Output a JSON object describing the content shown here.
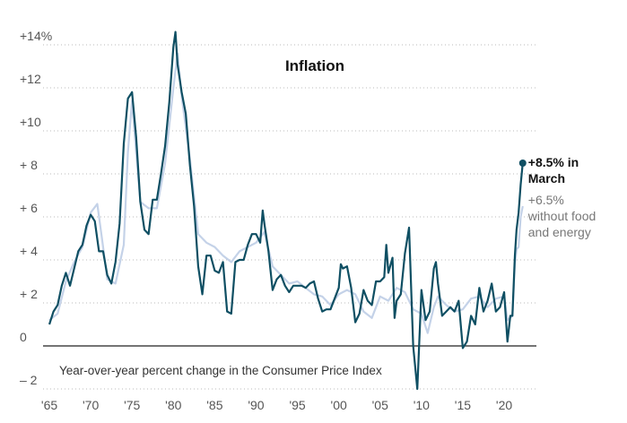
{
  "chart_data": {
    "type": "line",
    "title": "Inflation",
    "subtitle": "Year-over-year percent change in the Consumer Price Index",
    "xlim": [
      1964,
      2024
    ],
    "xticks": [
      {
        "value": 1965,
        "label": "'65"
      },
      {
        "value": 1970,
        "label": "'70"
      },
      {
        "value": 1975,
        "label": "'75"
      },
      {
        "value": 1980,
        "label": "'80"
      },
      {
        "value": 1985,
        "label": "'85"
      },
      {
        "value": 1990,
        "label": "'90"
      },
      {
        "value": 1995,
        "label": "'95"
      },
      {
        "value": 2000,
        "label": "'00"
      },
      {
        "value": 2005,
        "label": "'05"
      },
      {
        "value": 2010,
        "label": "'10"
      },
      {
        "value": 2015,
        "label": "'15"
      },
      {
        "value": 2020,
        "label": "'20"
      }
    ],
    "ylim": [
      -2.3,
      14.7
    ],
    "yticks": [
      {
        "value": 14,
        "label": "+14%"
      },
      {
        "value": 12,
        "label": "+12"
      },
      {
        "value": 10,
        "label": "+10"
      },
      {
        "value": 8,
        "label": "+ 8"
      },
      {
        "value": 6,
        "label": "+ 6"
      },
      {
        "value": 4,
        "label": "+ 4"
      },
      {
        "value": 2,
        "label": "+ 2"
      },
      0,
      {
        "value": -2,
        "label": "– 2"
      }
    ],
    "grid": true,
    "series": [
      {
        "color": "#c4d2e8",
        "label_lines": [
          "+6.5%",
          "without food",
          "and energy"
        ],
        "x": [
          1965,
          1966,
          1967,
          1968,
          1969,
          1970,
          1970.8,
          1971.5,
          1972,
          1973,
          1974,
          1974.5,
          1975,
          1975.5,
          1976,
          1977,
          1978,
          1979,
          1980,
          1980.5,
          1981,
          1982,
          1983,
          1984,
          1985,
          1986,
          1987,
          1988,
          1989,
          1990,
          1991,
          1992,
          1993,
          1994,
          1995,
          1996,
          1997,
          1998,
          1999,
          2000,
          2001,
          2002,
          2003,
          2004,
          2005,
          2006,
          2007,
          2008,
          2009,
          2010,
          2010.75,
          2011.5,
          2012,
          2013,
          2014,
          2015,
          2016,
          2017,
          2018,
          2019,
          2020,
          2020.4,
          2021,
          2021.3,
          2021.5,
          2021.75,
          2022,
          2022.25
        ],
        "values": [
          1.2,
          1.5,
          3.0,
          3.9,
          4.6,
          6.2,
          6.6,
          4.6,
          3.1,
          2.9,
          4.7,
          9.0,
          11.4,
          9.0,
          6.7,
          6.4,
          6.4,
          8.5,
          12.0,
          13.6,
          11.6,
          8.7,
          5.2,
          4.8,
          4.6,
          4.2,
          3.9,
          4.4,
          4.6,
          4.8,
          5.3,
          3.7,
          3.3,
          2.9,
          3.0,
          2.7,
          2.4,
          2.3,
          1.9,
          2.4,
          2.6,
          2.4,
          1.6,
          1.3,
          2.3,
          2.1,
          2.7,
          2.5,
          1.7,
          1.5,
          0.6,
          1.8,
          2.3,
          1.9,
          1.6,
          1.7,
          2.2,
          2.3,
          1.8,
          2.2,
          2.3,
          1.2,
          1.4,
          3.8,
          4.5,
          4.6,
          6.0,
          6.5
        ]
      },
      {
        "color": "#0f4f63",
        "label_lines": [
          "+8.5% in",
          "March"
        ],
        "x": [
          1965,
          1965.5,
          1966,
          1966.5,
          1967,
          1967.5,
          1968,
          1968.5,
          1969,
          1969.5,
          1970,
          1970.5,
          1971,
          1971.5,
          1972,
          1972.5,
          1973,
          1973.5,
          1974,
          1974.5,
          1975,
          1975.5,
          1976,
          1976.5,
          1977,
          1977.5,
          1978,
          1978.5,
          1979,
          1979.5,
          1980,
          1980.25,
          1980.5,
          1981,
          1981.5,
          1982,
          1982.5,
          1983,
          1983.5,
          1984,
          1984.5,
          1985,
          1985.5,
          1986,
          1986.5,
          1987,
          1987.5,
          1988,
          1988.5,
          1989,
          1989.5,
          1990,
          1990.5,
          1990.8,
          1991,
          1991.5,
          1992,
          1992.5,
          1993,
          1993.5,
          1994,
          1994.5,
          1995,
          1995.5,
          1996,
          1996.5,
          1997,
          1997.5,
          1998,
          1998.5,
          1999,
          1999.5,
          2000,
          2000.25,
          2000.5,
          2001,
          2001.5,
          2002,
          2002.5,
          2003,
          2003.5,
          2004,
          2004.5,
          2005,
          2005.5,
          2005.75,
          2006,
          2006.5,
          2006.75,
          2007,
          2007.5,
          2008,
          2008.5,
          2008.9,
          2009,
          2009.5,
          2010,
          2010.5,
          2011,
          2011.5,
          2011.75,
          2012,
          2012.5,
          2013,
          2013.5,
          2014,
          2014.5,
          2015,
          2015.5,
          2016,
          2016.5,
          2017,
          2017.5,
          2018,
          2018.5,
          2019,
          2019.5,
          2020,
          2020.4,
          2020.75,
          2021,
          2021.3,
          2021.5,
          2021.75,
          2022,
          2022.25
        ],
        "values": [
          1.0,
          1.6,
          1.9,
          2.8,
          3.4,
          2.8,
          3.6,
          4.4,
          4.7,
          5.6,
          6.1,
          5.8,
          4.4,
          4.4,
          3.3,
          2.9,
          3.9,
          5.7,
          9.4,
          11.5,
          11.8,
          9.7,
          6.7,
          5.4,
          5.2,
          6.8,
          6.8,
          8.0,
          9.3,
          11.3,
          13.9,
          14.6,
          13.1,
          11.8,
          10.8,
          8.4,
          6.5,
          3.7,
          2.4,
          4.2,
          4.2,
          3.5,
          3.4,
          3.9,
          1.6,
          1.5,
          3.9,
          4.0,
          4.0,
          4.7,
          5.2,
          5.2,
          4.8,
          6.3,
          5.7,
          4.4,
          2.6,
          3.1,
          3.3,
          2.8,
          2.5,
          2.8,
          2.8,
          2.8,
          2.7,
          2.9,
          3.0,
          2.2,
          1.6,
          1.7,
          1.7,
          2.2,
          2.7,
          3.8,
          3.6,
          3.7,
          2.7,
          1.1,
          1.5,
          2.6,
          2.1,
          1.9,
          3.0,
          3.0,
          3.2,
          4.7,
          3.4,
          4.1,
          1.3,
          2.1,
          2.4,
          4.3,
          5.5,
          1.1,
          0.0,
          -2.0,
          2.6,
          1.2,
          1.6,
          3.6,
          3.9,
          2.9,
          1.4,
          1.6,
          1.8,
          1.6,
          2.1,
          -0.1,
          0.2,
          1.4,
          1.0,
          2.7,
          1.6,
          2.1,
          2.9,
          1.6,
          1.8,
          2.5,
          0.2,
          1.4,
          1.4,
          4.2,
          5.4,
          6.2,
          7.5,
          8.5
        ]
      }
    ]
  }
}
